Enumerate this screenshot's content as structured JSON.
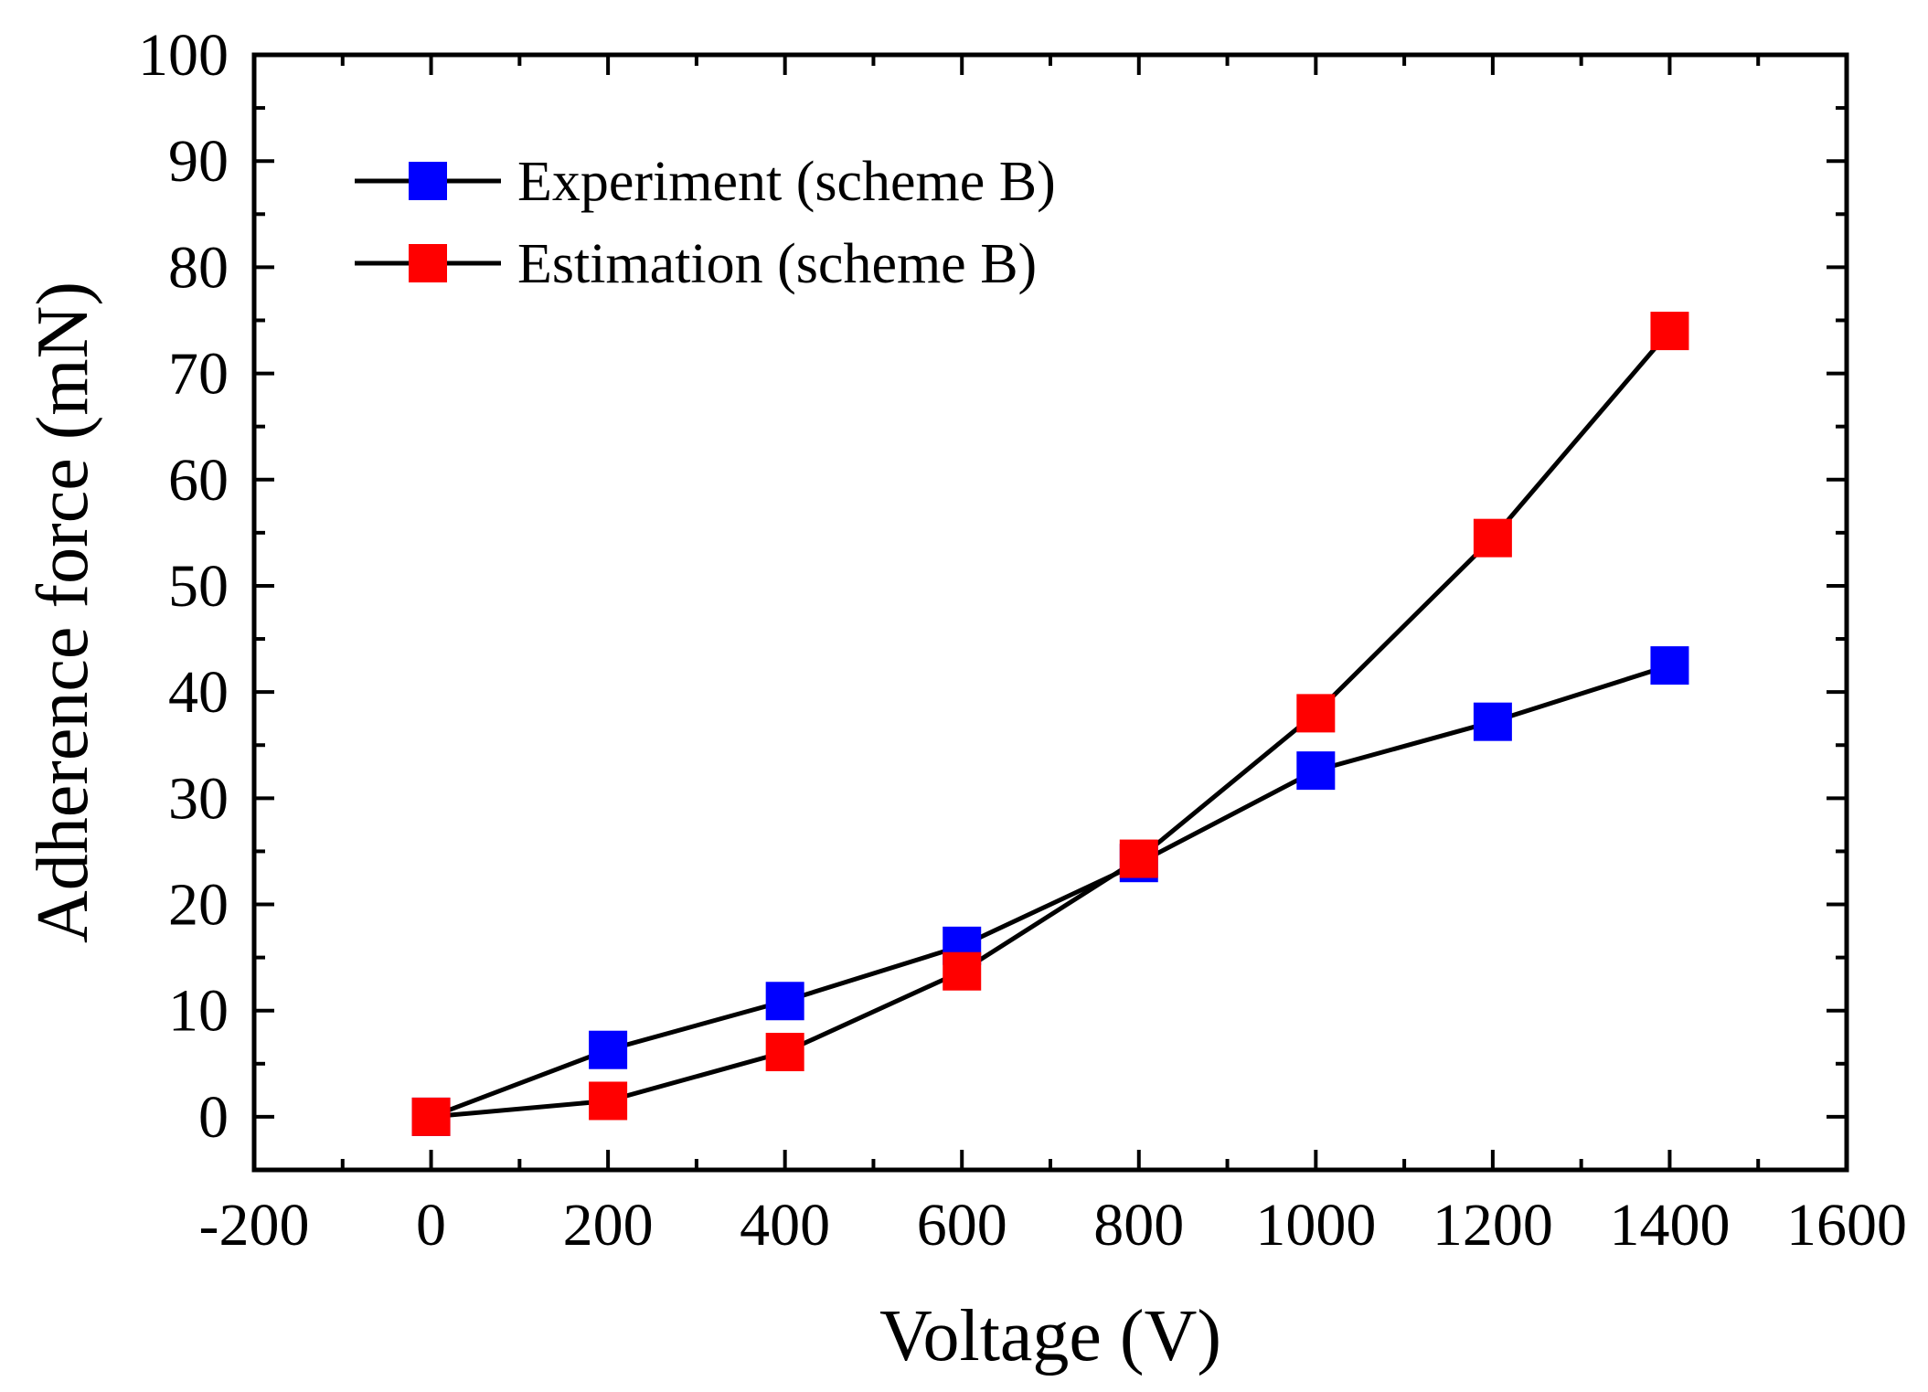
{
  "chart_data": {
    "type": "line",
    "title": "",
    "xlabel": "Voltage (V)",
    "ylabel": "Adherence force (mN)",
    "xlim": [
      -200,
      1600
    ],
    "ylim": [
      -5,
      100
    ],
    "xticks": [
      -200,
      0,
      200,
      400,
      600,
      800,
      1000,
      1200,
      1400,
      1600
    ],
    "yticks": [
      0,
      10,
      20,
      30,
      40,
      50,
      60,
      70,
      80,
      90,
      100
    ],
    "grid": false,
    "legend_position": "top-left",
    "series": [
      {
        "name": "Experiment (scheme B)",
        "color": "#0000ff",
        "marker": "square",
        "line_color": "#000000",
        "x": [
          0,
          200,
          400,
          600,
          800,
          1000,
          1200,
          1400
        ],
        "y": [
          0,
          6.3,
          10.9,
          16.1,
          23.9,
          32.6,
          37.2,
          42.5
        ]
      },
      {
        "name": "Estimation (scheme B)",
        "color": "#ff0000",
        "marker": "square",
        "line_color": "#000000",
        "x": [
          0,
          200,
          400,
          600,
          800,
          1000,
          1200,
          1400
        ],
        "y": [
          0,
          1.5,
          6.1,
          13.7,
          24.3,
          38.0,
          54.5,
          74.0
        ]
      }
    ]
  }
}
